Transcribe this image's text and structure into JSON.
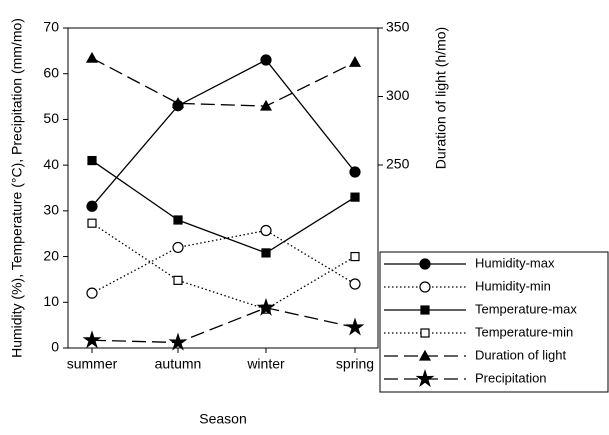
{
  "chart_data": {
    "type": "line",
    "x_label": "Season",
    "y_label": "Humidity (%), Temperature (°C), Precipitation (mm/mo)",
    "y2_label": "Duration of light (h/mo)",
    "categories": [
      "summer",
      "autumn",
      "winter",
      "spring"
    ],
    "ylim": [
      0,
      70
    ],
    "yticks": [
      0,
      10,
      20,
      30,
      40,
      50,
      60,
      70
    ],
    "y2lim": [
      116.4,
      350
    ],
    "y2ticks": [
      250,
      300,
      350
    ],
    "legend": "lower-right",
    "series": [
      {
        "name": "Humidity-max",
        "color": "#000000",
        "marker": "circle",
        "filled": true,
        "dash": "solid",
        "values": [
          31,
          53,
          63,
          38.5
        ]
      },
      {
        "name": "Humidity-min",
        "color": "#000000",
        "marker": "circle",
        "filled": false,
        "dash": "dotted",
        "values": [
          12,
          22,
          25.7,
          14
        ]
      },
      {
        "name": "Temperature-max",
        "color": "#000000",
        "marker": "square",
        "filled": true,
        "dash": "solid",
        "values": [
          41,
          28,
          20.8,
          33
        ]
      },
      {
        "name": "Temperature-min",
        "color": "#000000",
        "marker": "square",
        "filled": false,
        "dash": "dotted",
        "values": [
          27.3,
          14.8,
          8.5,
          20
        ]
      },
      {
        "name": "Duration of light",
        "color": "#000000",
        "marker": "triangle",
        "filled": true,
        "dash": "long",
        "axis": "y2",
        "values": [
          328,
          295,
          293,
          325
        ]
      },
      {
        "name": "Precipitation",
        "color": "#000000",
        "marker": "star",
        "filled": true,
        "dash": "long",
        "values": [
          1.7,
          1.2,
          8.8,
          4.5
        ]
      }
    ]
  }
}
